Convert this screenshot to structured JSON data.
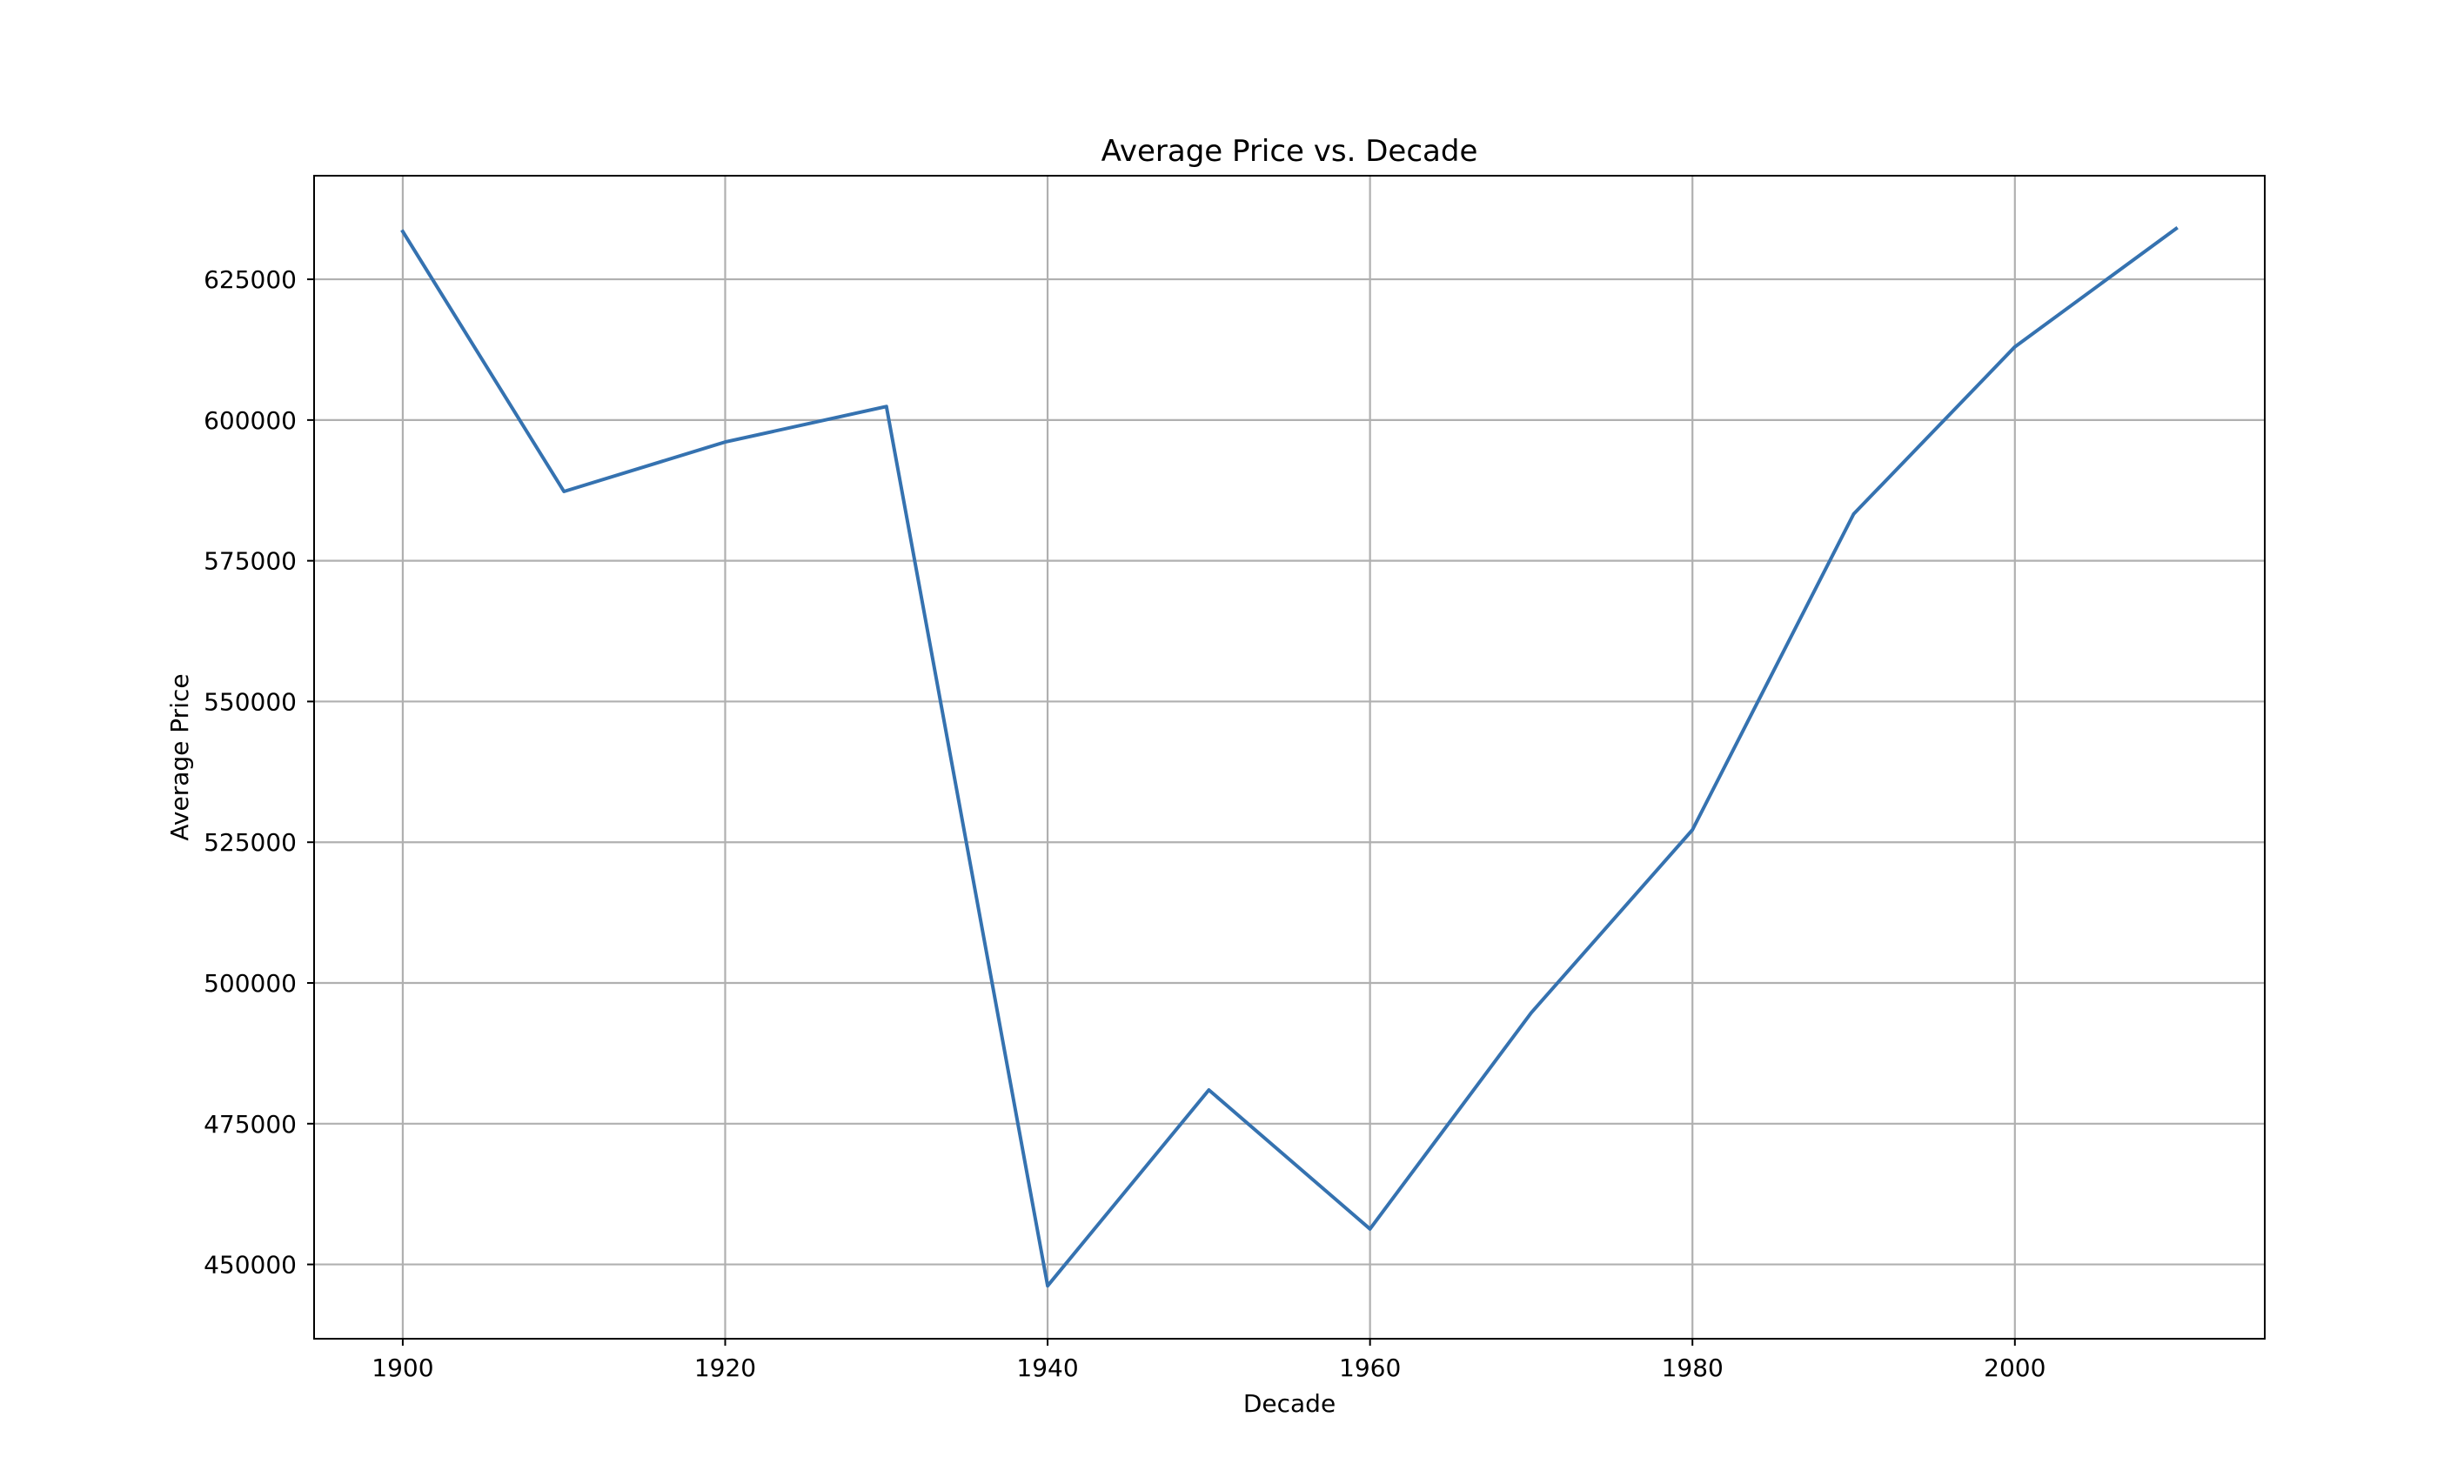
{
  "chart_data": {
    "type": "line",
    "title": "Average Price vs. Decade",
    "xlabel": "Decade",
    "ylabel": "Average Price",
    "x": [
      1900,
      1910,
      1920,
      1930,
      1940,
      1950,
      1960,
      1970,
      1980,
      1990,
      2000,
      2010
    ],
    "series": [
      {
        "values": [
          633500,
          587300,
          596100,
          602400,
          446200,
          481000,
          456300,
          494700,
          527200,
          583300,
          613000,
          634000
        ],
        "color": "#3572b0"
      }
    ],
    "xlim": [
      1894.5,
      2015.5
    ],
    "ylim": [
      436800,
      643400
    ],
    "xticks": [
      1900,
      1920,
      1940,
      1960,
      1980,
      2000
    ],
    "yticks": [
      450000,
      475000,
      500000,
      525000,
      550000,
      575000,
      600000,
      625000
    ],
    "grid": true,
    "legend": "none"
  }
}
